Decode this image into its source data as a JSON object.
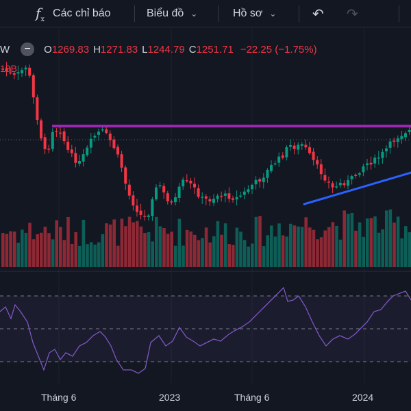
{
  "toolbar": {
    "indicators_label": "Các chỉ báo",
    "chart_label": "Biểu đồ",
    "profile_label": "Hồ sơ",
    "fx_symbol": "f"
  },
  "legend": {
    "interval": "W",
    "o_label": "O",
    "o_value": "1269.83",
    "h_label": "H",
    "h_value": "1271.83",
    "l_label": "L",
    "l_value": "1244.79",
    "c_label": "C",
    "c_value": "1251.71",
    "change": "−22.25 (−1.75%)",
    "volume_fragment": "18B",
    "down_color": "#f23645",
    "up_color": "#089981"
  },
  "x_axis": {
    "labels": [
      "Tháng 6",
      "2023",
      "Tháng 6",
      "2024"
    ]
  },
  "drawings": {
    "resistance_color": "#9c27b0",
    "trendline_color": "#2962ff",
    "rsi_line_color": "#7e57c2"
  },
  "icons": [
    "fx-icon",
    "chevron-down-icon",
    "undo-icon",
    "redo-icon",
    "minus-icon"
  ]
}
